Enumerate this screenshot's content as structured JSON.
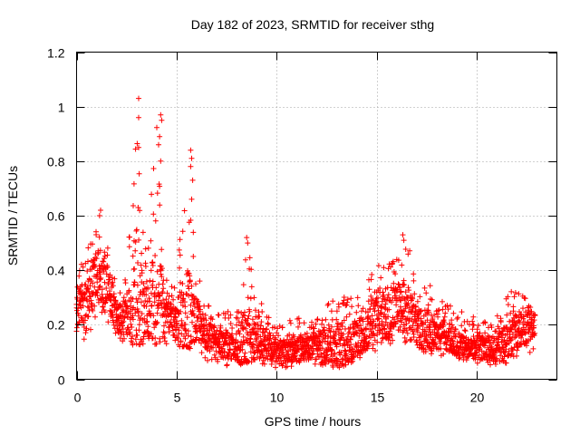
{
  "chart_data": {
    "type": "scatter",
    "title": "Day 182 of 2023, SRMTID for receiver sthg",
    "xlabel": "GPS time / hours",
    "ylabel": "SRMTID / TECUs",
    "xlim": [
      0,
      24
    ],
    "ylim": [
      0,
      1.2
    ],
    "x_ticks": [
      0,
      5,
      10,
      15,
      20
    ],
    "x_tick_labels": [
      "0",
      "5",
      "10",
      "15",
      "20"
    ],
    "y_ticks": [
      0,
      0.2,
      0.4,
      0.6,
      0.8,
      1,
      1.2
    ],
    "y_tick_labels": [
      "0",
      "0.2",
      "0.4",
      "0.6",
      "0.8",
      "1",
      "1.2"
    ],
    "grid": true,
    "marker": "plus",
    "colors": {
      "series": "#ff0000",
      "grid": "#a0a0a0",
      "axis": "#000000"
    },
    "series": [
      {
        "name": "SRMTID",
        "envelope": {
          "x": [
            0,
            0.5,
            1,
            1.5,
            2,
            2.5,
            3,
            3.5,
            4,
            4.5,
            5,
            5.5,
            6,
            6.5,
            7,
            7.5,
            8,
            8.5,
            9,
            9.5,
            10,
            10.5,
            11,
            11.5,
            12,
            12.5,
            13,
            13.5,
            14,
            14.5,
            15,
            15.5,
            16,
            16.5,
            17,
            17.5,
            18,
            18.5,
            19,
            19.5,
            20,
            20.5,
            21,
            21.5,
            22,
            22.5,
            22.9
          ],
          "typical": [
            0.26,
            0.27,
            0.38,
            0.36,
            0.22,
            0.24,
            0.28,
            0.24,
            0.3,
            0.23,
            0.22,
            0.2,
            0.22,
            0.15,
            0.14,
            0.13,
            0.12,
            0.15,
            0.14,
            0.13,
            0.1,
            0.1,
            0.12,
            0.11,
            0.12,
            0.12,
            0.13,
            0.12,
            0.15,
            0.18,
            0.21,
            0.23,
            0.26,
            0.26,
            0.19,
            0.18,
            0.17,
            0.16,
            0.13,
            0.12,
            0.12,
            0.11,
            0.11,
            0.13,
            0.18,
            0.19,
            0.2
          ],
          "high": [
            0.41,
            0.46,
            0.61,
            0.5,
            0.35,
            0.38,
            1.03,
            0.42,
            0.97,
            0.38,
            0.37,
            0.84,
            0.4,
            0.28,
            0.25,
            0.25,
            0.24,
            0.52,
            0.3,
            0.27,
            0.2,
            0.2,
            0.25,
            0.2,
            0.22,
            0.3,
            0.33,
            0.3,
            0.3,
            0.35,
            0.44,
            0.42,
            0.45,
            0.53,
            0.35,
            0.39,
            0.3,
            0.28,
            0.25,
            0.25,
            0.22,
            0.21,
            0.23,
            0.33,
            0.32,
            0.3,
            0.25
          ],
          "low": [
            0.12,
            0.14,
            0.2,
            0.2,
            0.12,
            0.12,
            0.13,
            0.12,
            0.13,
            0.13,
            0.12,
            0.12,
            0.1,
            0.07,
            0.05,
            0.05,
            0.05,
            0.06,
            0.06,
            0.05,
            0.04,
            0.04,
            0.05,
            0.05,
            0.05,
            0.05,
            0.04,
            0.05,
            0.07,
            0.08,
            0.1,
            0.12,
            0.13,
            0.12,
            0.1,
            0.09,
            0.08,
            0.08,
            0.06,
            0.06,
            0.06,
            0.05,
            0.05,
            0.06,
            0.08,
            0.09,
            0.1
          ]
        },
        "peaks": [
          {
            "x": 3.1,
            "y": 1.03
          },
          {
            "x": 3.1,
            "y": 0.96
          },
          {
            "x": 3.1,
            "y": 0.85
          },
          {
            "x": 4.2,
            "y": 0.97
          },
          {
            "x": 4.25,
            "y": 0.95
          },
          {
            "x": 4.15,
            "y": 0.89
          },
          {
            "x": 4.1,
            "y": 0.86
          },
          {
            "x": 4.2,
            "y": 0.8
          },
          {
            "x": 5.7,
            "y": 0.84
          },
          {
            "x": 5.75,
            "y": 0.81
          },
          {
            "x": 5.7,
            "y": 0.78
          },
          {
            "x": 5.8,
            "y": 0.73
          },
          {
            "x": 5.75,
            "y": 0.66
          },
          {
            "x": 8.5,
            "y": 0.52
          },
          {
            "x": 8.55,
            "y": 0.5
          },
          {
            "x": 16.3,
            "y": 0.53
          },
          {
            "x": 16.35,
            "y": 0.51
          },
          {
            "x": 1.2,
            "y": 0.62
          },
          {
            "x": 1.15,
            "y": 0.6
          }
        ],
        "values_note": "dense scatter of 5-minute samples; envelope gives approximate typical/high/low SRMTID values read from the figure"
      }
    ]
  }
}
